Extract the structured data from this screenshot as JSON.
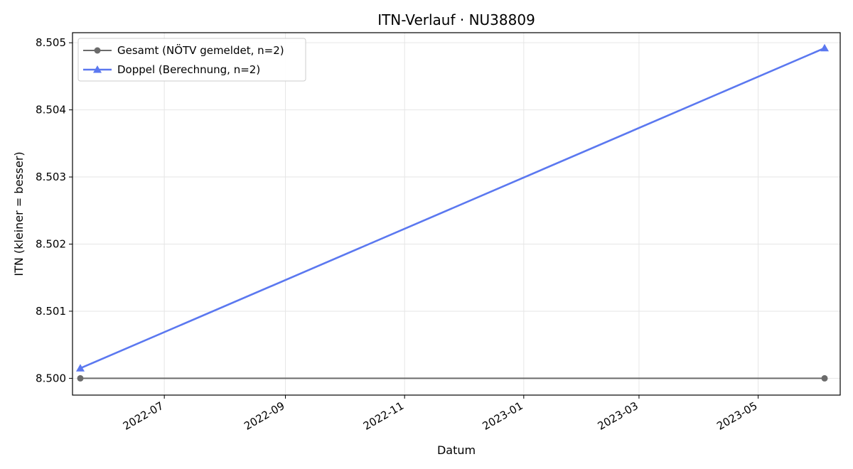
{
  "chart_data": {
    "type": "line",
    "title": "ITN-Verlauf · NU38809",
    "xlabel": "Datum",
    "ylabel": "ITN  (kleiner = besser)",
    "x_type": "date",
    "xlim": [
      "2022-05-15",
      "2023-06-12"
    ],
    "ylim": [
      8.49975,
      8.50515
    ],
    "x_ticks": [
      "2022-07-01",
      "2022-09-01",
      "2022-11-01",
      "2023-01-01",
      "2023-03-01",
      "2023-05-01"
    ],
    "x_tick_labels": [
      "2022-07",
      "2022-09",
      "2022-11",
      "2023-01",
      "2023-03",
      "2023-05"
    ],
    "y_ticks": [
      8.5,
      8.501,
      8.502,
      8.503,
      8.504,
      8.505
    ],
    "y_tick_labels": [
      "8.500",
      "8.501",
      "8.502",
      "8.503",
      "8.504",
      "8.505"
    ],
    "grid": true,
    "legend_position": "top-left",
    "series": [
      {
        "name": "Gesamt (NÖTV gemeldet, n=2)",
        "color": "#6b6b6b",
        "marker": "circle",
        "x": [
          "2022-05-19",
          "2023-06-04"
        ],
        "y": [
          8.5,
          8.5
        ]
      },
      {
        "name": "Doppel (Berechnung, n=2)",
        "color": "#5b78f0",
        "marker": "triangle",
        "x": [
          "2022-05-19",
          "2023-06-04"
        ],
        "y": [
          8.50015,
          8.50492
        ]
      }
    ]
  }
}
